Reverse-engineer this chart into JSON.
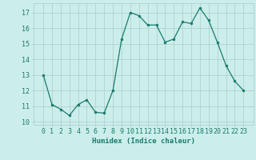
{
  "x": [
    0,
    1,
    2,
    3,
    4,
    5,
    6,
    7,
    8,
    9,
    10,
    11,
    12,
    13,
    14,
    15,
    16,
    17,
    18,
    19,
    20,
    21,
    22,
    23
  ],
  "y": [
    13.0,
    11.1,
    10.8,
    10.4,
    11.1,
    11.4,
    10.6,
    10.55,
    12.0,
    15.3,
    17.0,
    16.8,
    16.2,
    16.2,
    15.1,
    15.3,
    16.4,
    16.3,
    17.3,
    16.5,
    15.1,
    13.6,
    12.6,
    12.0
  ],
  "line_color": "#1a7a6e",
  "marker": "o",
  "marker_size": 2.0,
  "bg_color": "#cceeea",
  "grid_color": "#aacccc",
  "xlabel": "Humidex (Indice chaleur)",
  "ylim": [
    9.8,
    17.6
  ],
  "yticks": [
    10,
    11,
    12,
    13,
    14,
    15,
    16,
    17
  ],
  "xticks": [
    0,
    1,
    2,
    3,
    4,
    5,
    6,
    7,
    8,
    9,
    10,
    11,
    12,
    13,
    14,
    15,
    16,
    17,
    18,
    19,
    20,
    21,
    22,
    23
  ],
  "xlabel_fontsize": 6.5,
  "tick_fontsize": 6.0,
  "line_width": 0.9
}
